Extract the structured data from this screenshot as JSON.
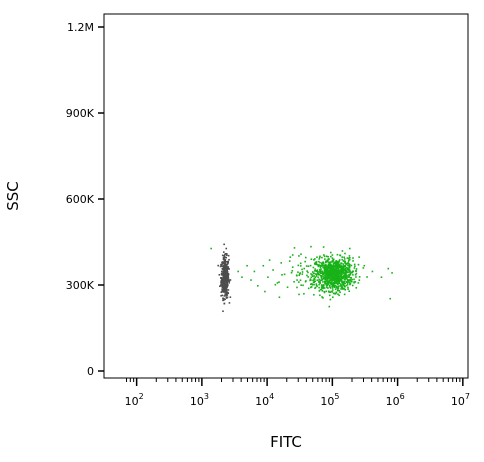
{
  "chart_data": {
    "type": "scatter",
    "title": "",
    "xlabel": "FITC",
    "ylabel": "SSC",
    "xscale": "log",
    "xlim": [
      31.6,
      12000000
    ],
    "ylim": [
      -20000,
      1240000
    ],
    "grid": false,
    "legend": "none",
    "x_ticks": [
      {
        "value": 100,
        "base": "10",
        "exp": "2"
      },
      {
        "value": 1000,
        "base": "10",
        "exp": "3"
      },
      {
        "value": 10000,
        "base": "10",
        "exp": "4"
      },
      {
        "value": 100000,
        "base": "10",
        "exp": "5"
      },
      {
        "value": 1000000,
        "base": "10",
        "exp": "6"
      },
      {
        "value": 10000000,
        "base": "10",
        "exp": "7"
      }
    ],
    "y_ticks": [
      {
        "value": 0,
        "label": "0"
      },
      {
        "value": 300000,
        "label": "300K"
      },
      {
        "value": 600000,
        "label": "600K"
      },
      {
        "value": 900000,
        "label": "900K"
      },
      {
        "value": 1200000,
        "label": "1.2M"
      }
    ],
    "series": [
      {
        "color": "#4d4d4d",
        "clusters": [
          {
            "x_center": 2200,
            "x_spread_log": 0.03,
            "y_center": 330000,
            "y_spread": 35000,
            "count": 420
          }
        ],
        "points": [
          [
            2300,
            430000
          ],
          [
            2100,
            250000
          ],
          [
            2500,
            405000
          ],
          [
            1950,
            300000
          ],
          [
            2400,
            260000
          ]
        ]
      },
      {
        "color": "#18b218",
        "clusters": [
          {
            "x_center": 105000,
            "x_spread_log": 0.14,
            "y_center": 340000,
            "y_spread": 28000,
            "count": 900
          },
          {
            "x_center": 60000,
            "x_spread_log": 0.25,
            "y_center": 345000,
            "y_spread": 35000,
            "count": 140
          }
        ],
        "points": [
          [
            1350,
            430000
          ],
          [
            4000,
            330000
          ],
          [
            4800,
            370000
          ],
          [
            5500,
            320000
          ],
          [
            6200,
            350000
          ],
          [
            7000,
            300000
          ],
          [
            8500,
            370000
          ],
          [
            10000,
            330000
          ],
          [
            12000,
            355000
          ],
          [
            14000,
            310000
          ],
          [
            16000,
            380000
          ],
          [
            18000,
            340000
          ],
          [
            20000,
            295000
          ],
          [
            24000,
            365000
          ],
          [
            28000,
            320000
          ],
          [
            3500,
            350000
          ],
          [
            9000,
            280000
          ],
          [
            15000,
            260000
          ],
          [
            22000,
            400000
          ],
          [
            30000,
            270000
          ],
          [
            300000,
            370000
          ],
          [
            400000,
            350000
          ],
          [
            550000,
            330000
          ],
          [
            700000,
            360000
          ],
          [
            750000,
            255000
          ],
          [
            800000,
            345000
          ],
          [
            250000,
            400000
          ],
          [
            180000,
            430000
          ]
        ]
      }
    ]
  }
}
